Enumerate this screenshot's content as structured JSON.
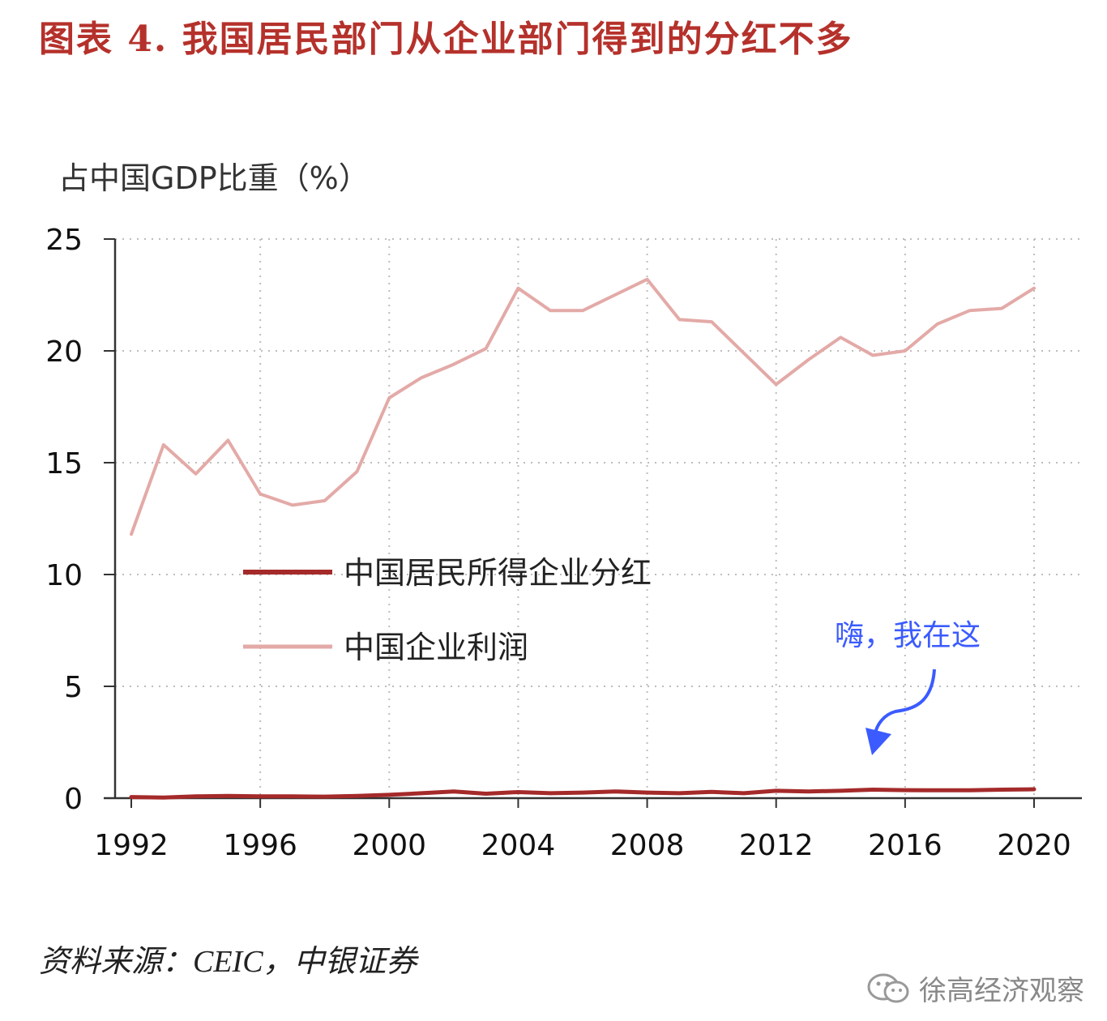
{
  "figure": {
    "title": "图表 4. 我国居民部门从企业部门得到的分红不多",
    "source": "资料来源：CEIC，中银证券",
    "watermark": "徐高经济观察",
    "watermark_icon": "wechat-icon"
  },
  "chart_data": {
    "type": "line",
    "ylabel": "占中国GDP比重（%）",
    "xlabel": "",
    "ylim": [
      0,
      25
    ],
    "yticks": [
      0,
      5,
      10,
      15,
      20,
      25
    ],
    "xlim": [
      1992,
      2020
    ],
    "xticks": [
      1992,
      1996,
      2000,
      2004,
      2008,
      2012,
      2016,
      2020
    ],
    "grid": true,
    "legend_placement": "center-left",
    "x": [
      1992,
      1993,
      1994,
      1995,
      1996,
      1997,
      1998,
      1999,
      2000,
      2001,
      2002,
      2003,
      2004,
      2005,
      2006,
      2007,
      2008,
      2009,
      2010,
      2011,
      2012,
      2013,
      2014,
      2015,
      2016,
      2017,
      2018,
      2019,
      2020
    ],
    "series": [
      {
        "name": "中国居民所得企业分红",
        "color": "#a52a2a",
        "values": [
          0.05,
          0.03,
          0.08,
          0.1,
          0.08,
          0.08,
          0.07,
          0.1,
          0.15,
          0.22,
          0.3,
          0.2,
          0.27,
          0.22,
          0.25,
          0.3,
          0.25,
          0.22,
          0.28,
          0.22,
          0.33,
          0.3,
          0.33,
          0.38,
          0.36,
          0.35,
          0.35,
          0.38,
          0.4
        ]
      },
      {
        "name": "中国企业利润",
        "color": "#e3aaa7",
        "values": [
          11.8,
          15.8,
          14.5,
          16.0,
          13.6,
          13.1,
          13.3,
          14.6,
          17.9,
          18.8,
          19.4,
          20.1,
          22.8,
          21.8,
          21.8,
          22.5,
          23.2,
          21.4,
          21.3,
          19.9,
          18.5,
          19.6,
          20.6,
          19.8,
          20.0,
          21.2,
          21.8,
          21.9,
          22.8
        ]
      }
    ],
    "annotations": [
      {
        "text": "嗨，我在这",
        "color": "#3b5bff",
        "points_to": {
          "x": 2015,
          "y": 0.4
        }
      }
    ]
  }
}
